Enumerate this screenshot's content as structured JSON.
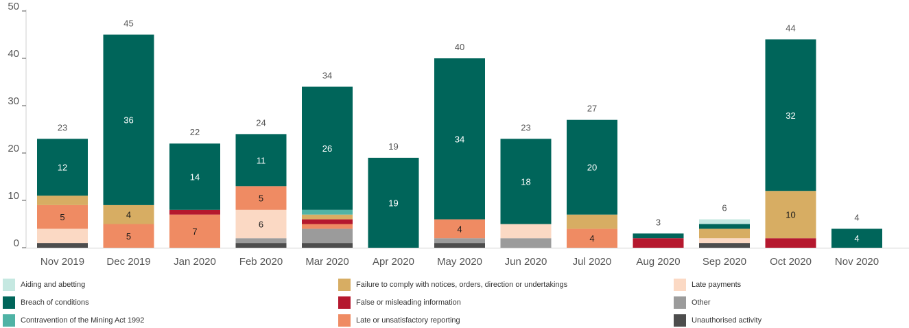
{
  "chart_data": {
    "type": "bar",
    "stacked": true,
    "categories": [
      "Nov 2019",
      "Dec 2019",
      "Jan 2020",
      "Feb 2020",
      "Mar 2020",
      "Apr 2020",
      "May 2020",
      "Jun 2020",
      "Jul 2020",
      "Aug 2020",
      "Sep 2020",
      "Oct 2020",
      "Nov 2020"
    ],
    "ylim": [
      0,
      50
    ],
    "yticks": [
      0,
      10,
      20,
      30,
      40,
      50
    ],
    "grid": false,
    "legend_position": "bottom",
    "totals": [
      23,
      45,
      22,
      24,
      34,
      19,
      40,
      23,
      27,
      3,
      6,
      44,
      4
    ],
    "series": [
      {
        "name": "Unauthorised activity",
        "color": "#4d4d4d",
        "values": [
          1,
          0,
          0,
          1,
          1,
          0,
          1,
          0,
          0,
          0,
          1,
          0,
          0
        ]
      },
      {
        "name": "Other",
        "color": "#9b9b9b",
        "values": [
          0,
          0,
          0,
          1,
          3,
          0,
          1,
          2,
          0,
          0,
          0,
          0,
          0
        ]
      },
      {
        "name": "Late payments",
        "color": "#fbd9c4",
        "values": [
          3,
          0,
          0,
          6,
          0,
          0,
          0,
          3,
          0,
          0,
          1,
          0,
          0
        ]
      },
      {
        "name": "Late or unsatisfactory reporting",
        "color": "#ef8b63",
        "values": [
          5,
          5,
          7,
          5,
          1,
          0,
          4,
          0,
          4,
          0,
          0,
          0,
          0
        ]
      },
      {
        "name": "False or misleading information",
        "color": "#b5182e",
        "values": [
          0,
          0,
          1,
          0,
          1,
          0,
          0,
          0,
          0,
          2,
          0,
          2,
          0
        ]
      },
      {
        "name": "Failure to comply with notices, orders, direction or undertakings",
        "color": "#d7ad63",
        "values": [
          2,
          4,
          0,
          0,
          1,
          0,
          0,
          0,
          3,
          0,
          2,
          10,
          0
        ]
      },
      {
        "name": "Contravention of the Mining Act 1992",
        "color": "#4fb3a5",
        "values": [
          0,
          0,
          0,
          0,
          1,
          0,
          0,
          0,
          0,
          0,
          0,
          0,
          0
        ]
      },
      {
        "name": "Breach of conditions",
        "color": "#00655a",
        "values": [
          12,
          36,
          14,
          11,
          26,
          19,
          34,
          18,
          20,
          1,
          1,
          32,
          4
        ]
      },
      {
        "name": "Aiding and abetting",
        "color": "#c5e8e1",
        "values": [
          0,
          0,
          0,
          0,
          0,
          0,
          0,
          0,
          0,
          0,
          1,
          0,
          0
        ]
      }
    ],
    "segment_labels": [
      {
        "category": 0,
        "series": "Breach of conditions",
        "text": "12"
      },
      {
        "category": 0,
        "series": "Late or unsatisfactory reporting",
        "text": "5"
      },
      {
        "category": 1,
        "series": "Breach of conditions",
        "text": "36"
      },
      {
        "category": 1,
        "series": "Failure to comply with notices, orders, direction or undertakings",
        "text": "4"
      },
      {
        "category": 1,
        "series": "Late or unsatisfactory reporting",
        "text": "5"
      },
      {
        "category": 2,
        "series": "Breach of conditions",
        "text": "14"
      },
      {
        "category": 2,
        "series": "Late or unsatisfactory reporting",
        "text": "7"
      },
      {
        "category": 3,
        "series": "Breach of conditions",
        "text": "11"
      },
      {
        "category": 3,
        "series": "Late or unsatisfactory reporting",
        "text": "5"
      },
      {
        "category": 3,
        "series": "Late payments",
        "text": "6"
      },
      {
        "category": 4,
        "series": "Breach of conditions",
        "text": "26"
      },
      {
        "category": 5,
        "series": "Breach of conditions",
        "text": "19"
      },
      {
        "category": 6,
        "series": "Breach of conditions",
        "text": "34"
      },
      {
        "category": 6,
        "series": "Late or unsatisfactory reporting",
        "text": "4"
      },
      {
        "category": 7,
        "series": "Breach of conditions",
        "text": "18"
      },
      {
        "category": 8,
        "series": "Breach of conditions",
        "text": "20"
      },
      {
        "category": 8,
        "series": "Late or unsatisfactory reporting",
        "text": "4"
      },
      {
        "category": 11,
        "series": "Breach of conditions",
        "text": "32"
      },
      {
        "category": 11,
        "series": "Failure to comply with notices, orders, direction or undertakings",
        "text": "10"
      },
      {
        "category": 12,
        "series": "Breach of conditions",
        "text": "4"
      }
    ],
    "legend_rows": [
      [
        "Aiding and abetting",
        "Failure to comply with notices, orders, direction or undertakings",
        "Late payments"
      ],
      [
        "Breach of conditions",
        "False or misleading information",
        "Other"
      ],
      [
        "Contravention of the Mining Act 1992",
        "Late or unsatisfactory reporting",
        "Unauthorised activity"
      ]
    ]
  }
}
